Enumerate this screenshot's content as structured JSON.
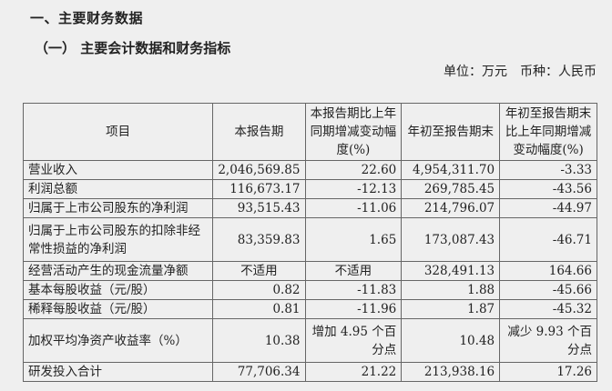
{
  "heading": "一、主要财务数据",
  "subheading": "（一） 主要会计数据和财务指标",
  "unit": {
    "unit_label": "单位：万元",
    "currency_label": "币种：人民币"
  },
  "table": {
    "headers": [
      "项目",
      "本报告期",
      "本报告期比上年同期增减变动幅度(%)",
      "年初至报告期末",
      "年初至报告期末比上年同期增减变动幅度(%)"
    ],
    "rows": [
      [
        "营业收入",
        "2,046,569.85",
        "22.60",
        "4,954,311.70",
        "-3.33"
      ],
      [
        "利润总额",
        "116,673.17",
        "-12.13",
        "269,785.45",
        "-43.56"
      ],
      [
        "归属于上市公司股东的净利润",
        "93,515.43",
        "-11.06",
        "214,796.07",
        "-44.97"
      ],
      [
        "归属于上市公司股东的扣除非经常性损益的净利润",
        "83,359.83",
        "1.65",
        "173,087.43",
        "-46.71"
      ],
      [
        "经营活动产生的现金流量净额",
        "不适用",
        "不适用",
        "328,491.13",
        "164.66"
      ],
      [
        "基本每股收益（元/股）",
        "0.82",
        "-11.83",
        "1.88",
        "-45.66"
      ],
      [
        "稀释每股收益（元/股）",
        "0.81",
        "-11.96",
        "1.87",
        "-45.32"
      ],
      [
        "加权平均净资产收益率（%）",
        "10.38",
        "增加 4.95 个百分点",
        "10.48",
        "减少 9.93 个百分点"
      ],
      [
        "研发投入合计",
        "77,706.34",
        "21.22",
        "213,938.16",
        "17.26"
      ]
    ]
  }
}
